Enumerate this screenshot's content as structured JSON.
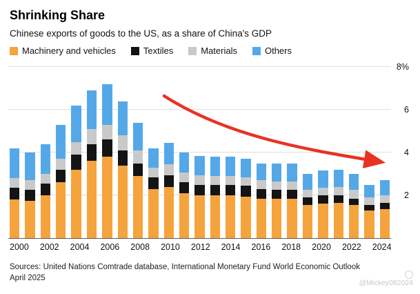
{
  "header": {
    "title": "Shrinking Share",
    "subtitle": "Chinese exports of goods to the US, as a share of China's GDP"
  },
  "legend": [
    {
      "label": "Machinery and vehicles",
      "color": "#f5a33c"
    },
    {
      "label": "Textiles",
      "color": "#141414"
    },
    {
      "label": "Materials",
      "color": "#c9c9c9"
    },
    {
      "label": "Others",
      "color": "#55a8e8"
    }
  ],
  "chart_data": {
    "type": "bar",
    "stacked": true,
    "categories": [
      2000,
      2001,
      2002,
      2003,
      2004,
      2005,
      2006,
      2007,
      2008,
      2009,
      2010,
      2011,
      2012,
      2013,
      2014,
      2015,
      2016,
      2017,
      2018,
      2019,
      2020,
      2021,
      2022,
      2023,
      2024
    ],
    "series": [
      {
        "name": "Machinery and vehicles",
        "color": "#f5a33c",
        "values": [
          1.8,
          1.75,
          2.0,
          2.6,
          3.2,
          3.6,
          3.8,
          3.4,
          2.9,
          2.3,
          2.4,
          2.1,
          2.0,
          2.0,
          2.0,
          1.95,
          1.85,
          1.85,
          1.85,
          1.55,
          1.6,
          1.65,
          1.55,
          1.3,
          1.35
        ]
      },
      {
        "name": "Textiles",
        "color": "#141414",
        "values": [
          0.55,
          0.5,
          0.55,
          0.6,
          0.7,
          0.8,
          0.8,
          0.7,
          0.6,
          0.55,
          0.55,
          0.5,
          0.5,
          0.5,
          0.5,
          0.5,
          0.45,
          0.4,
          0.4,
          0.35,
          0.4,
          0.35,
          0.3,
          0.25,
          0.3
        ]
      },
      {
        "name": "Materials",
        "color": "#c9c9c9",
        "values": [
          0.45,
          0.45,
          0.45,
          0.5,
          0.6,
          0.7,
          0.7,
          0.7,
          0.6,
          0.45,
          0.5,
          0.45,
          0.45,
          0.4,
          0.4,
          0.4,
          0.4,
          0.4,
          0.4,
          0.35,
          0.35,
          0.4,
          0.4,
          0.35,
          0.35
        ]
      },
      {
        "name": "Others",
        "color": "#55a8e8",
        "values": [
          1.4,
          1.3,
          1.4,
          1.6,
          1.7,
          1.8,
          1.9,
          1.6,
          1.3,
          0.9,
          1.0,
          0.95,
          0.9,
          0.9,
          0.9,
          0.85,
          0.8,
          0.85,
          0.85,
          0.75,
          0.8,
          0.8,
          0.75,
          0.6,
          0.7
        ]
      }
    ],
    "title": "Shrinking Share",
    "xlabel": "",
    "ylabel": "",
    "ylim": [
      0,
      8
    ],
    "yticks": [
      {
        "value": 2,
        "label": "2"
      },
      {
        "value": 4,
        "label": "4"
      },
      {
        "value": 6,
        "label": "6"
      },
      {
        "value": 8,
        "label": "8%"
      }
    ],
    "xtick_every": 2,
    "grid": true,
    "legend_position": "top",
    "annotation": {
      "type": "arrow",
      "color": "#e83323",
      "description": "red downward-curving trend arrow from 2008 area to 2023 area"
    }
  },
  "footer": {
    "sources": "Sources: United Nations Comtrade database, International Monetary Fund World Economic Outlook April 2025"
  },
  "watermark": {
    "handle": "@Mickey082024"
  }
}
